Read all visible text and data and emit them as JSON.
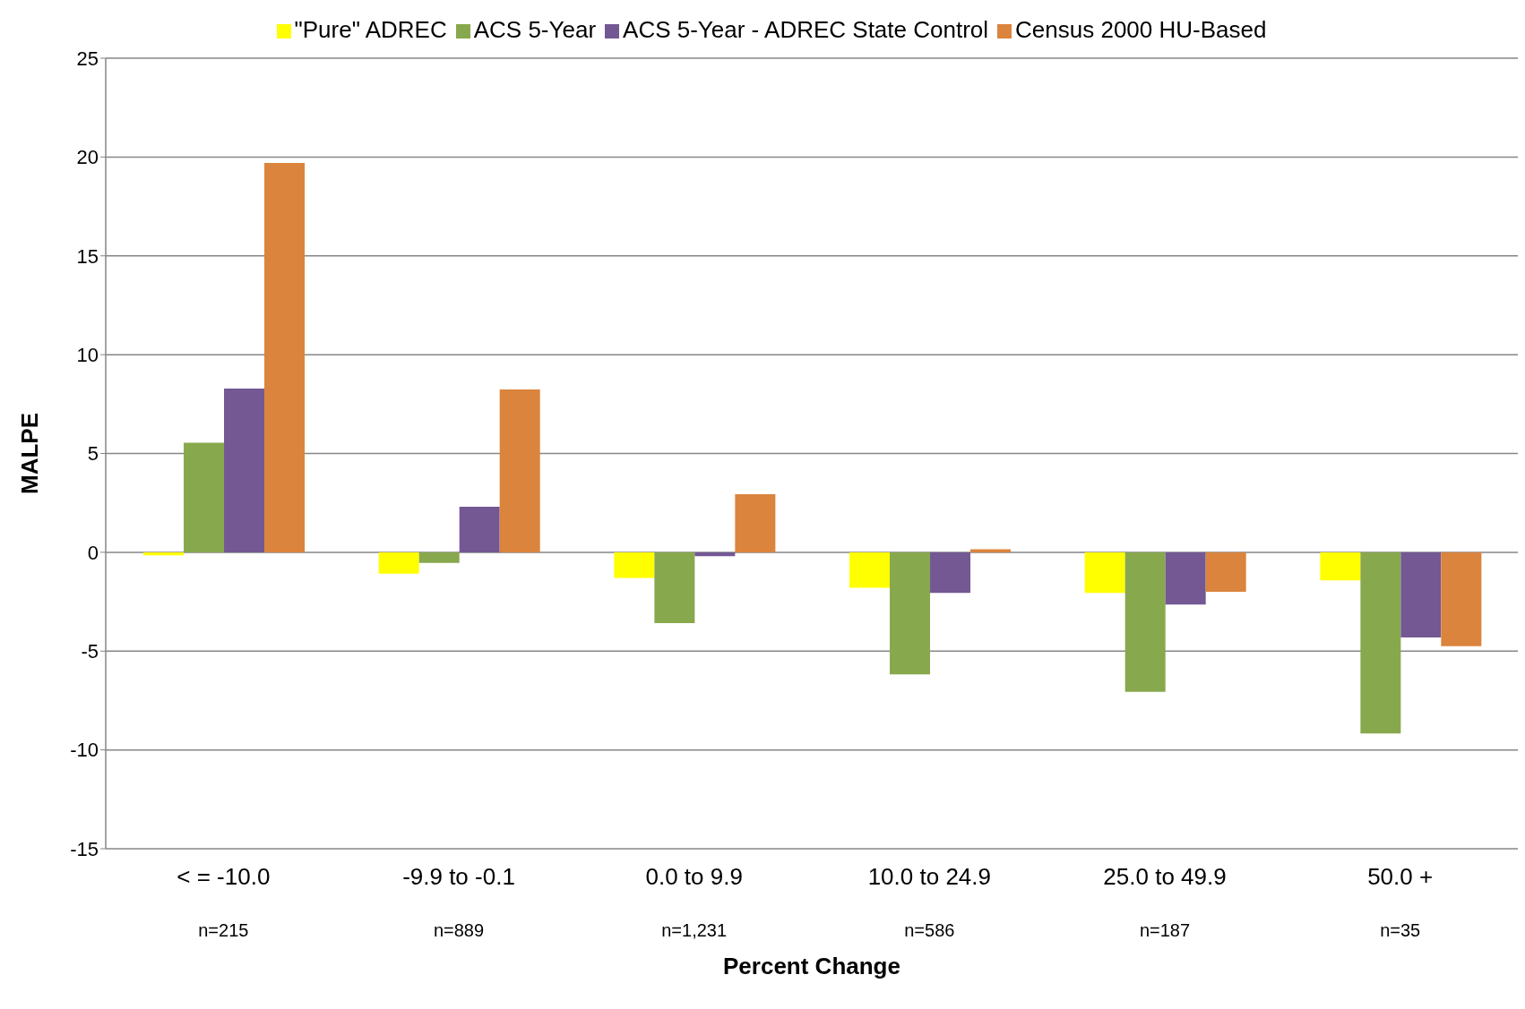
{
  "chart_data": {
    "type": "bar",
    "xlabel": "Percent Change",
    "ylabel": "MALPE",
    "categories": [
      "< = -10.0\nn=215",
      "-9.9 to -0.1\nn=889",
      "0.0 to 9.9\nn=1,231",
      "10.0 to 24.9\nn=586",
      "25.0 to 49.9\nn=187",
      "50.0 +\nn=35"
    ],
    "series": [
      {
        "name": "\"Pure\" ADREC",
        "color": "#ffff00",
        "values": [
          -0.15,
          -1.08,
          -1.3,
          -1.8,
          -2.06,
          -1.42
        ]
      },
      {
        "name": "ACS 5-Year",
        "color": "#88a84d",
        "values": [
          5.54,
          -0.54,
          -3.58,
          -6.18,
          -7.06,
          -9.17
        ]
      },
      {
        "name": "ACS 5-Year - ADREC State Control",
        "color": "#735894",
        "values": [
          8.28,
          2.3,
          -0.2,
          -2.06,
          -2.65,
          -4.31
        ]
      },
      {
        "name": "Census 2000 HU-Based",
        "color": "#db843d",
        "values": [
          19.7,
          8.24,
          2.94,
          0.15,
          -2.0,
          -4.75
        ]
      }
    ],
    "ylim": [
      -15,
      25
    ],
    "yticks": [
      -15,
      -10,
      -5,
      0,
      5,
      10,
      15,
      20,
      25
    ],
    "grid": "y",
    "legend": "top"
  }
}
